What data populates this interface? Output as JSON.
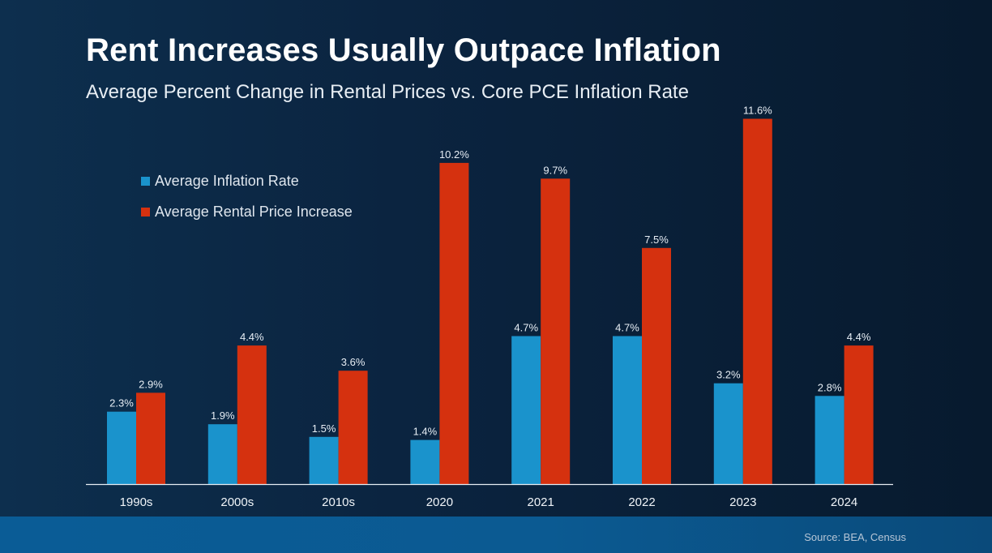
{
  "header": {
    "title": "Rent Increases Usually Outpace Inflation",
    "subtitle": "Average Percent Change in Rental Prices vs. Core PCE Inflation Rate"
  },
  "footer": {
    "source": "Source: BEA, Census"
  },
  "colors": {
    "inflation": "#1a93cc",
    "rent": "#d5310f",
    "axis": "#e6edf4",
    "background": "#0b2440",
    "band": "#0a5c96"
  },
  "chart_data": {
    "type": "bar",
    "title": "Rent Increases Usually Outpace Inflation",
    "subtitle": "Average Percent Change in Rental Prices vs. Core PCE Inflation Rate",
    "categories": [
      "1990s",
      "2000s",
      "2010s",
      "2020",
      "2021",
      "2022",
      "2023",
      "2024"
    ],
    "series": [
      {
        "name": "Average Inflation Rate",
        "color": "#1a93cc",
        "values": [
          2.3,
          1.9,
          1.5,
          1.4,
          4.7,
          4.7,
          3.2,
          2.8
        ],
        "labels": [
          "2.3%",
          "1.9%",
          "1.5%",
          "1.4%",
          "4.7%",
          "4.7%",
          "3.2%",
          "2.8%"
        ]
      },
      {
        "name": "Average Rental Price Increase",
        "color": "#d5310f",
        "values": [
          2.9,
          4.4,
          3.6,
          10.2,
          9.7,
          7.5,
          11.6,
          4.4
        ],
        "labels": [
          "2.9%",
          "4.4%",
          "3.6%",
          "10.2%",
          "9.7%",
          "7.5%",
          "11.6%",
          "4.4%"
        ]
      }
    ],
    "ylim": [
      0,
      12
    ],
    "xlabel": "",
    "ylabel": "",
    "grid": false,
    "legend_position": "top-left"
  }
}
